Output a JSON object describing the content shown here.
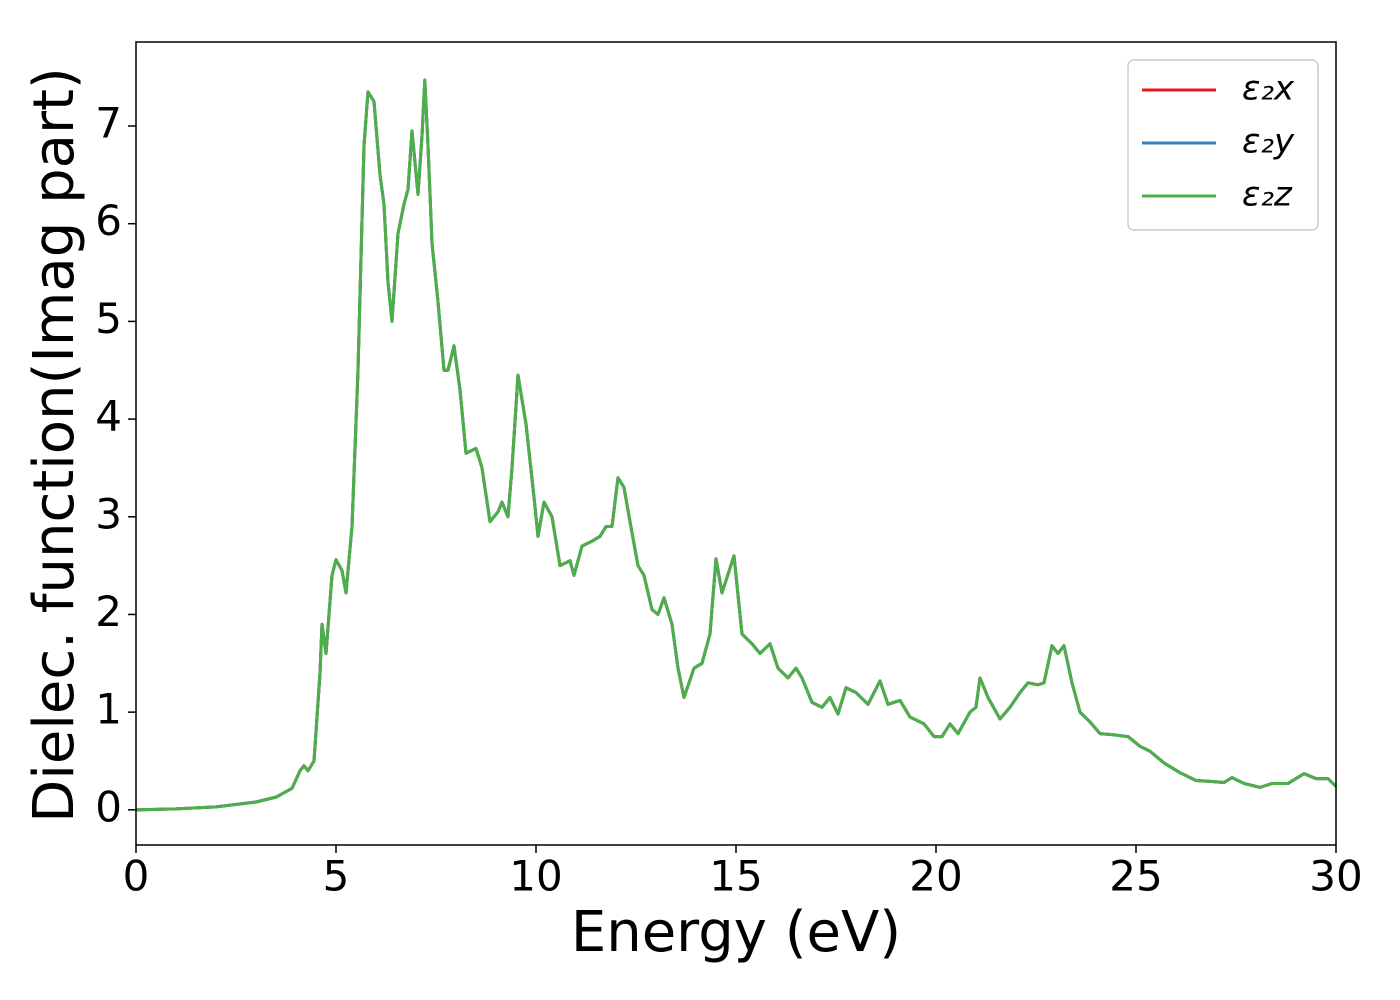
{
  "chart_data": {
    "type": "line",
    "xlabel": "Energy (eV)",
    "ylabel": "Dielec. function(Imag part)",
    "xlim": [
      0,
      30
    ],
    "xticks": [
      0,
      5,
      10,
      15,
      20,
      25,
      30
    ],
    "ylim": [
      -0.36,
      7.86
    ],
    "yticks": [
      0,
      1,
      2,
      3,
      4,
      5,
      6,
      7
    ],
    "legend": "upper right",
    "grid": false,
    "x": [
      0,
      1,
      2,
      3,
      3.5,
      3.9,
      4.1,
      4.2,
      4.3,
      4.45,
      4.6,
      4.65,
      4.75,
      4.9,
      5.0,
      5.15,
      5.25,
      5.4,
      5.55,
      5.7,
      5.8,
      5.95,
      6.1,
      6.2,
      6.3,
      6.4,
      6.55,
      6.7,
      6.8,
      6.9,
      7.05,
      7.15,
      7.22,
      7.3,
      7.4,
      7.55,
      7.7,
      7.8,
      7.95,
      8.1,
      8.25,
      8.5,
      8.65,
      8.85,
      9.05,
      9.15,
      9.3,
      9.4,
      9.55,
      9.75,
      9.95,
      10.05,
      10.2,
      10.4,
      10.6,
      10.85,
      10.95,
      11.15,
      11.4,
      11.6,
      11.75,
      11.9,
      12.05,
      12.2,
      12.35,
      12.55,
      12.7,
      12.9,
      13.05,
      13.2,
      13.4,
      13.55,
      13.7,
      13.95,
      14.15,
      14.35,
      14.5,
      14.65,
      14.95,
      15.15,
      15.4,
      15.6,
      15.85,
      16.05,
      16.3,
      16.5,
      16.65,
      16.9,
      17.15,
      17.35,
      17.55,
      17.75,
      18.0,
      18.3,
      18.6,
      18.8,
      19.1,
      19.35,
      19.7,
      19.95,
      20.15,
      20.35,
      20.55,
      20.85,
      21.0,
      21.1,
      21.3,
      21.6,
      21.85,
      22.1,
      22.3,
      22.55,
      22.7,
      22.9,
      23.05,
      23.2,
      23.4,
      23.6,
      23.85,
      24.1,
      24.4,
      24.8,
      25.1,
      25.35,
      25.7,
      26.1,
      26.5,
      26.9,
      27.2,
      27.4,
      27.7,
      28.1,
      28.4,
      28.8,
      29.2,
      29.5,
      29.8,
      30.0
    ],
    "series": [
      {
        "name": "ε₂x",
        "color": "#e41a1c",
        "values": [
          0,
          0.01,
          0.03,
          0.08,
          0.13,
          0.22,
          0.4,
          0.45,
          0.4,
          0.5,
          1.4,
          1.9,
          1.6,
          2.4,
          2.56,
          2.45,
          2.22,
          2.9,
          4.5,
          6.8,
          7.35,
          7.25,
          6.5,
          6.2,
          5.4,
          5.0,
          5.9,
          6.2,
          6.35,
          6.95,
          6.3,
          6.9,
          7.47,
          6.8,
          5.8,
          5.2,
          4.5,
          4.5,
          4.75,
          4.3,
          3.65,
          3.7,
          3.5,
          2.95,
          3.05,
          3.15,
          3.0,
          3.5,
          4.45,
          3.95,
          3.2,
          2.8,
          3.15,
          3.0,
          2.5,
          2.55,
          2.4,
          2.7,
          2.75,
          2.8,
          2.9,
          2.9,
          3.4,
          3.3,
          2.95,
          2.5,
          2.4,
          2.05,
          2.0,
          2.17,
          1.9,
          1.45,
          1.15,
          1.45,
          1.5,
          1.8,
          2.57,
          2.22,
          2.6,
          1.8,
          1.7,
          1.6,
          1.7,
          1.45,
          1.35,
          1.45,
          1.35,
          1.1,
          1.05,
          1.15,
          0.98,
          1.25,
          1.2,
          1.08,
          1.32,
          1.08,
          1.12,
          0.95,
          0.88,
          0.75,
          0.75,
          0.88,
          0.78,
          1.0,
          1.05,
          1.35,
          1.15,
          0.93,
          1.05,
          1.2,
          1.3,
          1.28,
          1.3,
          1.68,
          1.6,
          1.68,
          1.3,
          1.0,
          0.9,
          0.78,
          0.77,
          0.75,
          0.65,
          0.6,
          0.48,
          0.38,
          0.3,
          0.29,
          0.28,
          0.33,
          0.27,
          0.23,
          0.27,
          0.27,
          0.37,
          0.32,
          0.32,
          0.24
        ]
      },
      {
        "name": "ε₂y",
        "color": "#377eb8",
        "values": [
          0,
          0.01,
          0.03,
          0.08,
          0.13,
          0.22,
          0.4,
          0.45,
          0.4,
          0.5,
          1.4,
          1.9,
          1.6,
          2.4,
          2.56,
          2.45,
          2.22,
          2.9,
          4.5,
          6.8,
          7.35,
          7.25,
          6.5,
          6.2,
          5.4,
          5.0,
          5.9,
          6.2,
          6.35,
          6.95,
          6.3,
          6.9,
          7.47,
          6.8,
          5.8,
          5.2,
          4.5,
          4.5,
          4.75,
          4.3,
          3.65,
          3.7,
          3.5,
          2.95,
          3.05,
          3.15,
          3.0,
          3.5,
          4.45,
          3.95,
          3.2,
          2.8,
          3.15,
          3.0,
          2.5,
          2.55,
          2.4,
          2.7,
          2.75,
          2.8,
          2.9,
          2.9,
          3.4,
          3.3,
          2.95,
          2.5,
          2.4,
          2.05,
          2.0,
          2.17,
          1.9,
          1.45,
          1.15,
          1.45,
          1.5,
          1.8,
          2.57,
          2.22,
          2.6,
          1.8,
          1.7,
          1.6,
          1.7,
          1.45,
          1.35,
          1.45,
          1.35,
          1.1,
          1.05,
          1.15,
          0.98,
          1.25,
          1.2,
          1.08,
          1.32,
          1.08,
          1.12,
          0.95,
          0.88,
          0.75,
          0.75,
          0.88,
          0.78,
          1.0,
          1.05,
          1.35,
          1.15,
          0.93,
          1.05,
          1.2,
          1.3,
          1.28,
          1.3,
          1.68,
          1.6,
          1.68,
          1.3,
          1.0,
          0.9,
          0.78,
          0.77,
          0.75,
          0.65,
          0.6,
          0.48,
          0.38,
          0.3,
          0.29,
          0.28,
          0.33,
          0.27,
          0.23,
          0.27,
          0.27,
          0.37,
          0.32,
          0.32,
          0.24
        ]
      },
      {
        "name": "ε₂z",
        "color": "#4daf4a",
        "values": [
          0,
          0.01,
          0.03,
          0.08,
          0.13,
          0.22,
          0.4,
          0.45,
          0.4,
          0.5,
          1.4,
          1.9,
          1.6,
          2.4,
          2.56,
          2.45,
          2.22,
          2.9,
          4.5,
          6.8,
          7.35,
          7.25,
          6.5,
          6.2,
          5.4,
          5.0,
          5.9,
          6.2,
          6.35,
          6.95,
          6.3,
          6.9,
          7.47,
          6.8,
          5.8,
          5.2,
          4.5,
          4.5,
          4.75,
          4.3,
          3.65,
          3.7,
          3.5,
          2.95,
          3.05,
          3.15,
          3.0,
          3.5,
          4.45,
          3.95,
          3.2,
          2.8,
          3.15,
          3.0,
          2.5,
          2.55,
          2.4,
          2.7,
          2.75,
          2.8,
          2.9,
          2.9,
          3.4,
          3.3,
          2.95,
          2.5,
          2.4,
          2.05,
          2.0,
          2.17,
          1.9,
          1.45,
          1.15,
          1.45,
          1.5,
          1.8,
          2.57,
          2.22,
          2.6,
          1.8,
          1.7,
          1.6,
          1.7,
          1.45,
          1.35,
          1.45,
          1.35,
          1.1,
          1.05,
          1.15,
          0.98,
          1.25,
          1.2,
          1.08,
          1.32,
          1.08,
          1.12,
          0.95,
          0.88,
          0.75,
          0.75,
          0.88,
          0.78,
          1.0,
          1.05,
          1.35,
          1.15,
          0.93,
          1.05,
          1.2,
          1.3,
          1.28,
          1.3,
          1.68,
          1.6,
          1.68,
          1.3,
          1.0,
          0.9,
          0.78,
          0.77,
          0.75,
          0.65,
          0.6,
          0.48,
          0.38,
          0.3,
          0.29,
          0.28,
          0.33,
          0.27,
          0.23,
          0.27,
          0.27,
          0.37,
          0.32,
          0.32,
          0.24
        ]
      }
    ]
  }
}
